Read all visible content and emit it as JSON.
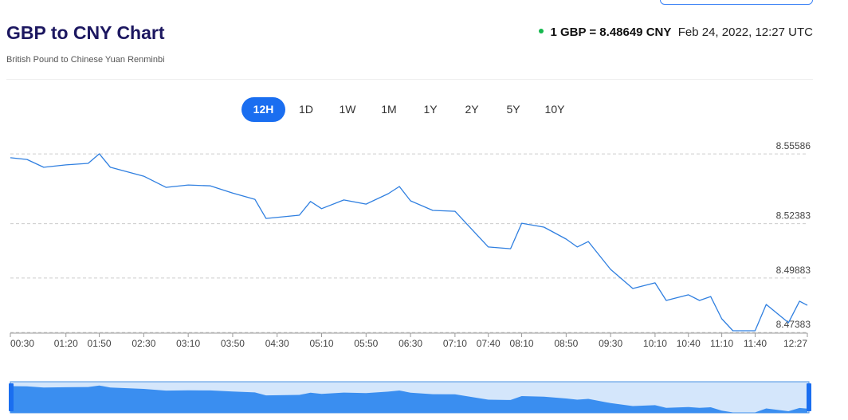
{
  "header": {
    "title": "GBP to CNY Chart",
    "subtitle": "British Pound to Chinese Yuan Renminbi",
    "rate": "1 GBP = 8.48649 CNY",
    "date": "Feb 24, 2022, 12:27 UTC"
  },
  "ranges": {
    "items": [
      "12H",
      "1D",
      "1W",
      "1M",
      "1Y",
      "2Y",
      "5Y",
      "10Y"
    ],
    "active": "12H"
  },
  "chart_data": {
    "type": "line",
    "x": [
      "00:30",
      "00:45",
      "01:00",
      "01:20",
      "01:40",
      "01:50",
      "02:00",
      "02:30",
      "02:50",
      "03:10",
      "03:30",
      "03:50",
      "04:10",
      "04:20",
      "04:50",
      "05:00",
      "05:10",
      "05:30",
      "05:50",
      "06:10",
      "06:20",
      "06:30",
      "06:50",
      "07:10",
      "07:20",
      "07:40",
      "08:00",
      "08:10",
      "08:30",
      "08:50",
      "09:00",
      "09:10",
      "09:30",
      "09:50",
      "10:10",
      "10:20",
      "10:40",
      "10:50",
      "11:00",
      "11:10",
      "11:20",
      "11:40",
      "11:50",
      "12:10",
      "12:20",
      "12:27"
    ],
    "series": [
      {
        "color": "#2f7fe0",
        "values": [
          8.5541,
          8.5533,
          8.5497,
          8.5508,
          8.5515,
          8.5559,
          8.5497,
          8.5456,
          8.5405,
          8.5416,
          8.5412,
          8.5379,
          8.535,
          8.5262,
          8.5277,
          8.534,
          8.5307,
          8.5347,
          8.5328,
          8.5376,
          8.5409,
          8.5343,
          8.5299,
          8.5295,
          8.524,
          8.5131,
          8.5123,
          8.524,
          8.5222,
          8.5167,
          8.5131,
          8.5156,
          8.5028,
          8.494,
          8.4966,
          8.4885,
          8.4911,
          8.4885,
          8.4903,
          8.4801,
          8.4746,
          8.4746,
          8.4867,
          8.4783,
          8.4882,
          8.4863
        ]
      }
    ],
    "ylim": [
      8.4735,
      8.5625
    ],
    "yticks": [
      8.47383,
      8.49883,
      8.52383,
      8.55586
    ],
    "xticks": [
      "00:30",
      "01:20",
      "01:50",
      "02:30",
      "03:10",
      "03:50",
      "04:30",
      "05:10",
      "05:50",
      "06:30",
      "07:10",
      "07:40",
      "08:10",
      "08:50",
      "09:30",
      "10:10",
      "10:40",
      "11:10",
      "11:40",
      "12:27"
    ],
    "grid": true
  }
}
